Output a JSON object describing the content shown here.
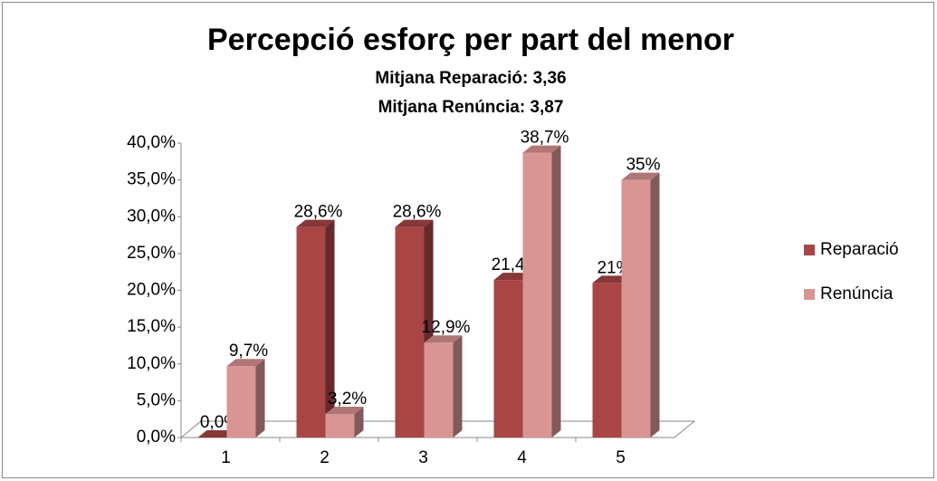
{
  "chart_data": {
    "type": "bar3d",
    "title": "Percepció esforç per part del menor",
    "subtitles": [
      "Mitjana Reparació: 3,36",
      "Mitjana Renúncia: 3,87"
    ],
    "categories": [
      "1",
      "2",
      "3",
      "4",
      "5"
    ],
    "series": [
      {
        "name": "Reparació",
        "color": "#a94545",
        "values": [
          0,
          28.6,
          28.6,
          21.4,
          21
        ],
        "value_labels": [
          "0,0%",
          "28,6%",
          "28,6%",
          "21,4%",
          "21%"
        ]
      },
      {
        "name": "Renúncia",
        "color": "#d99594",
        "values": [
          9.7,
          3.2,
          12.9,
          38.7,
          35
        ],
        "value_labels": [
          "9,7%",
          "3,2%",
          "12,9%",
          "38,7%",
          "35%"
        ]
      }
    ],
    "ylim": [
      0,
      40
    ],
    "yticks": [
      {
        "value": 0,
        "label": "0,0%"
      },
      {
        "value": 5,
        "label": "5,0%"
      },
      {
        "value": 10,
        "label": "10,0%"
      },
      {
        "value": 15,
        "label": "15,0%"
      },
      {
        "value": 20,
        "label": "20,0%"
      },
      {
        "value": 25,
        "label": "25,0%"
      },
      {
        "value": 30,
        "label": "30,0%"
      },
      {
        "value": 35,
        "label": "35,0%"
      },
      {
        "value": 40,
        "label": "40,0%"
      }
    ],
    "legend": "right"
  }
}
